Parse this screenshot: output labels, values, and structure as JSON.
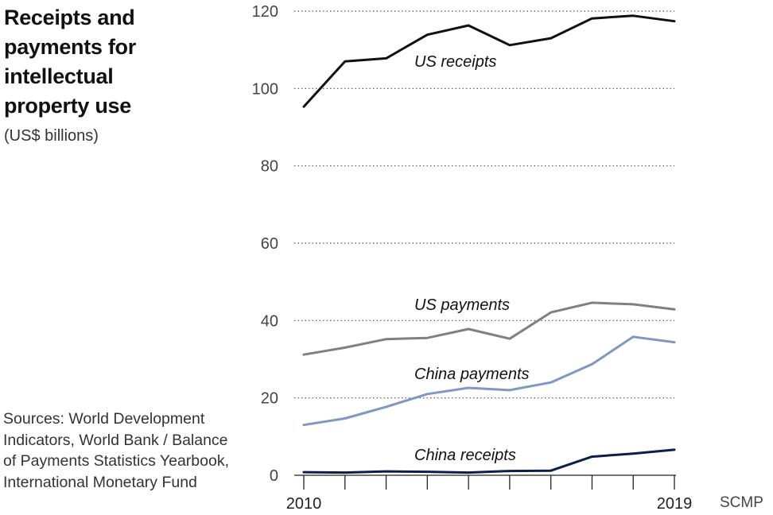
{
  "title": "Receipts and payments for intellectual property use",
  "subtitle": "(US$ billions)",
  "source": "Sources: World Development Indicators, World Bank / Balance of Payments Statistics Yearbook, International Monetary Fund",
  "credit": "SCMP",
  "chart_data": {
    "type": "line",
    "x": [
      2010,
      2011,
      2012,
      2013,
      2014,
      2015,
      2016,
      2017,
      2018,
      2019
    ],
    "x_tick_labels": [
      "2010",
      "2019"
    ],
    "y_ticks": [
      0,
      20,
      40,
      60,
      80,
      100,
      120
    ],
    "ylim": [
      0,
      120
    ],
    "grid": "horizontal dotted",
    "series": [
      {
        "name": "US receipts",
        "color": "#111111",
        "values": [
          95.3,
          107.0,
          107.8,
          113.9,
          116.3,
          111.2,
          113.0,
          118.1,
          118.8,
          117.4
        ]
      },
      {
        "name": "US payments",
        "color": "#808080",
        "values": [
          31.2,
          33.0,
          35.2,
          35.5,
          37.8,
          35.3,
          42.1,
          44.6,
          44.2,
          42.9
        ]
      },
      {
        "name": "China payments",
        "color": "#8096c3",
        "values": [
          13.0,
          14.7,
          17.7,
          21.0,
          22.6,
          22.0,
          24.0,
          28.7,
          35.8,
          34.4
        ]
      },
      {
        "name": "China receipts",
        "color": "#0b1f4a",
        "values": [
          0.8,
          0.7,
          1.0,
          0.9,
          0.7,
          1.1,
          1.2,
          4.8,
          5.6,
          6.6
        ]
      }
    ]
  }
}
